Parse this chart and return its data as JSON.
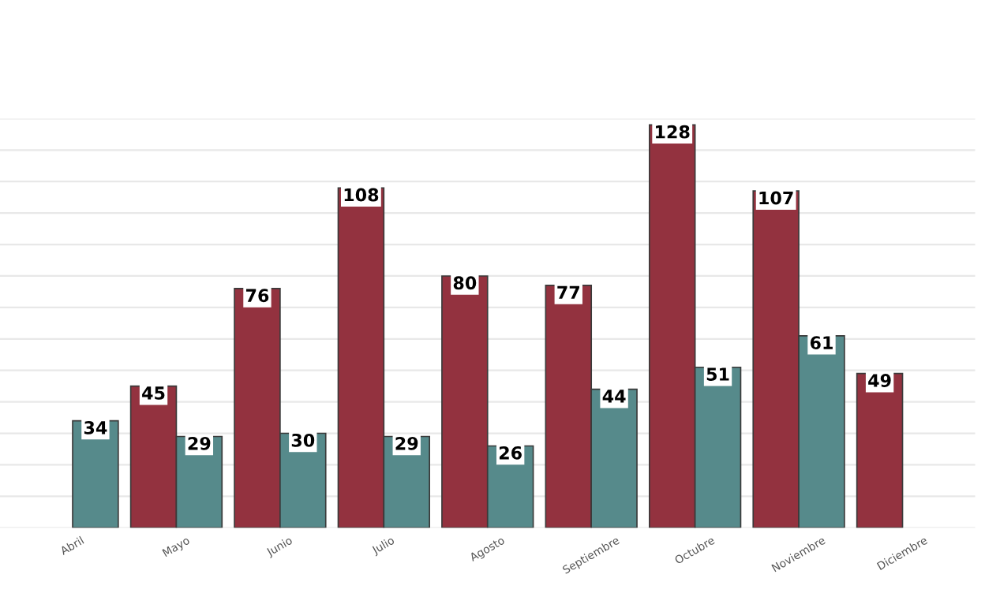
{
  "chart_data": {
    "type": "bar",
    "categories": [
      "Abril",
      "Mayo",
      "Junio",
      "Julio",
      "Agosto",
      "Septiembre",
      "Octubre",
      "Noviembre",
      "Diciembre"
    ],
    "series": [
      {
        "color": "#93323f",
        "values": [
          null,
          45,
          76,
          108,
          80,
          77,
          128,
          107,
          49
        ]
      },
      {
        "color": "#568a8b",
        "values": [
          34,
          29,
          30,
          29,
          26,
          44,
          51,
          61,
          null
        ]
      }
    ],
    "ylim": [
      0,
      130
    ],
    "yticks": [
      {
        "value": 0,
        "label": null
      },
      {
        "value": 10,
        "label": null
      },
      {
        "value": 20,
        "label": null
      },
      {
        "value": 30,
        "label": null
      },
      {
        "value": 40,
        "label": null
      },
      {
        "value": 50,
        "label": null
      },
      {
        "value": 60,
        "label": null
      },
      {
        "value": 70,
        "label": null
      },
      {
        "value": 80,
        "label": null
      },
      {
        "value": 90,
        "label": null
      },
      {
        "value": 100,
        "label": null
      },
      {
        "value": 110,
        "label": null
      },
      {
        "value": 120,
        "label": null
      },
      {
        "value": 130,
        "label": null
      }
    ],
    "tick_labels": "x",
    "grid": "y",
    "data_labels": true,
    "legend": false
  }
}
